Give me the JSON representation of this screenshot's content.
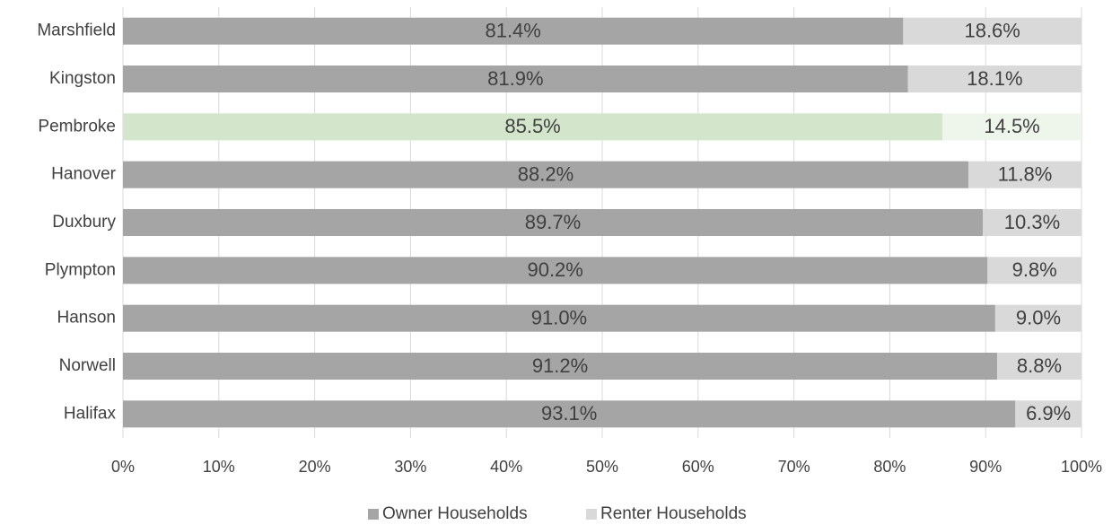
{
  "chart_data": {
    "type": "stacked_barh",
    "categories": [
      "Marshfield",
      "Kingston",
      "Pembroke",
      "Hanover",
      "Duxbury",
      "Plympton",
      "Hanson",
      "Norwell",
      "Halifax"
    ],
    "series": [
      {
        "name": "Owner Households",
        "color": "#a5a5a5",
        "colors": [
          "#a5a5a5",
          "#a5a5a5",
          "#d3e5cb",
          "#a5a5a5",
          "#a5a5a5",
          "#a5a5a5",
          "#a5a5a5",
          "#a5a5a5",
          "#a5a5a5"
        ],
        "values": [
          81.4,
          81.9,
          85.5,
          88.2,
          89.7,
          90.2,
          91.0,
          91.2,
          93.1
        ],
        "value_labels": [
          "81.4%",
          "81.9%",
          "85.5%",
          "88.2%",
          "89.7%",
          "90.2%",
          "91.0%",
          "91.2%",
          "93.1%"
        ]
      },
      {
        "name": "Renter Households",
        "color": "#d9d9d9",
        "colors": [
          "#d9d9d9",
          "#d9d9d9",
          "#eef5ea",
          "#d9d9d9",
          "#d9d9d9",
          "#d9d9d9",
          "#d9d9d9",
          "#d9d9d9",
          "#d9d9d9"
        ],
        "values": [
          18.6,
          18.1,
          14.5,
          11.8,
          10.3,
          9.8,
          9.0,
          8.8,
          6.9
        ],
        "value_labels": [
          "18.6%",
          "18.1%",
          "14.5%",
          "11.8%",
          "10.3%",
          "9.8%",
          "9.0%",
          "8.8%",
          "6.9%"
        ]
      }
    ],
    "xlim": [
      0,
      100
    ],
    "xticks": [
      {
        "value": 0,
        "label": "0%"
      },
      {
        "value": 10,
        "label": "10%"
      },
      {
        "value": 20,
        "label": "20%"
      },
      {
        "value": 30,
        "label": "30%"
      },
      {
        "value": 40,
        "label": "40%"
      },
      {
        "value": 50,
        "label": "50%"
      },
      {
        "value": 60,
        "label": "60%"
      },
      {
        "value": 70,
        "label": "70%"
      },
      {
        "value": 80,
        "label": "80%"
      },
      {
        "value": 90,
        "label": "90%"
      },
      {
        "value": 100,
        "label": "100%"
      }
    ],
    "grid": true,
    "legend": "bottom"
  }
}
